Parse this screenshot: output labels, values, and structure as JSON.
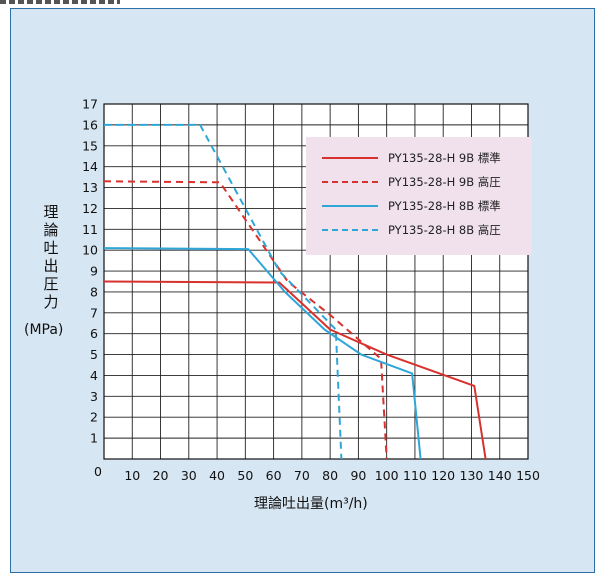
{
  "chart_data": {
    "type": "line",
    "ylabel_chars": [
      "理",
      "論",
      "吐",
      "出",
      "圧",
      "力"
    ],
    "ylabel_unit": "(MPa)",
    "xlabel": "理論吐出量(m³/h)",
    "xlim": [
      0,
      150
    ],
    "ylim": [
      0,
      17
    ],
    "x_ticks": [
      "0",
      "10",
      "20",
      "30",
      "40",
      "50",
      "60",
      "70",
      "80",
      "90",
      "100",
      "110",
      "120",
      "130",
      "140",
      "150"
    ],
    "y_ticks": [
      "0",
      "1",
      "2",
      "3",
      "4",
      "5",
      "6",
      "7",
      "8",
      "9",
      "10",
      "11",
      "12",
      "13",
      "14",
      "15",
      "16",
      "17"
    ],
    "grid": true,
    "legend_position": "top-right",
    "series": [
      {
        "name": "PY135-28-H 9B 標準",
        "color": "#d8322e",
        "dashed": false,
        "points": [
          [
            0,
            8.5
          ],
          [
            62,
            8.45
          ],
          [
            80,
            6.2
          ],
          [
            100,
            5.0
          ],
          [
            131,
            3.5
          ],
          [
            135,
            0
          ]
        ]
      },
      {
        "name": "PY135-28-H 9B 高圧",
        "color": "#d8322e",
        "dashed": true,
        "points": [
          [
            0,
            13.3
          ],
          [
            41,
            13.25
          ],
          [
            65,
            8.5
          ],
          [
            80,
            6.9
          ],
          [
            98,
            4.8
          ],
          [
            100,
            0
          ]
        ]
      },
      {
        "name": "PY135-28-H 8B 標準",
        "color": "#2fa6d8",
        "dashed": false,
        "points": [
          [
            0,
            10.1
          ],
          [
            51,
            10.05
          ],
          [
            64,
            8.0
          ],
          [
            78,
            6.2
          ],
          [
            91,
            5.0
          ],
          [
            109,
            4.1
          ],
          [
            112,
            0
          ]
        ]
      },
      {
        "name": "PY135-28-H 8B 高圧",
        "color": "#2fa6d8",
        "dashed": true,
        "points": [
          [
            0,
            16.0
          ],
          [
            34,
            16.0
          ],
          [
            62,
            9.0
          ],
          [
            82,
            6.2
          ],
          [
            84,
            0
          ]
        ]
      }
    ]
  }
}
